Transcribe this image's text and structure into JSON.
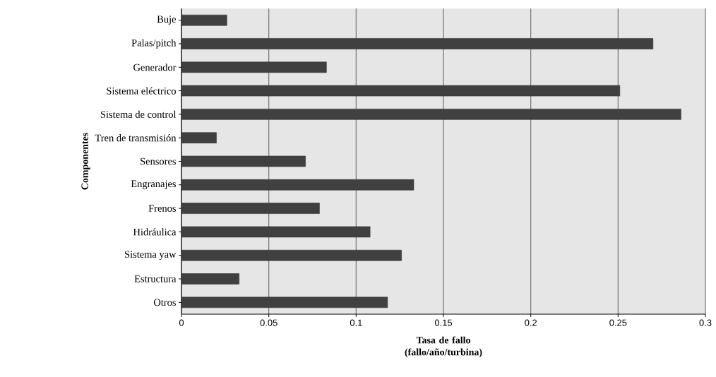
{
  "chart_data": {
    "type": "bar",
    "orientation": "horizontal",
    "xlabel": "Tasa de fallo (fallo/año/turbina)",
    "ylabel": "Componentes",
    "categories": [
      "Buje",
      "Palas/pitch",
      "Generador",
      "Sistema eléctrico",
      "Sistema de control",
      "Tren de transmisión",
      "Sensores",
      "Engranajes",
      "Frenos",
      "Hidráulica",
      "Sistema yaw",
      "Estructura",
      "Otros"
    ],
    "values": [
      0.026,
      0.27,
      0.083,
      0.251,
      0.286,
      0.02,
      0.071,
      0.133,
      0.079,
      0.108,
      0.126,
      0.033,
      0.118
    ],
    "color": "#404040",
    "xlim": [
      0,
      0.3
    ],
    "xticks": [
      0,
      0.05,
      0.1,
      0.15,
      0.2,
      0.25,
      0.3
    ],
    "grid": "x"
  }
}
